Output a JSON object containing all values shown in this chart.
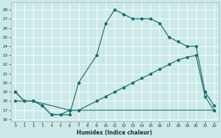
{
  "xlabel": "Humidex (Indice chaleur)",
  "bg_color": "#cce9e9",
  "grid_color": "#ffffff",
  "line_color": "#1a7070",
  "xlim": [
    -0.5,
    22.5
  ],
  "ylim": [
    15.8,
    28.8
  ],
  "xticks": [
    0,
    1,
    2,
    3,
    4,
    5,
    6,
    7,
    8,
    9,
    10,
    11,
    12,
    13,
    14,
    15,
    16,
    17,
    18,
    19,
    20,
    21,
    22
  ],
  "yticks": [
    16,
    17,
    18,
    19,
    20,
    21,
    22,
    23,
    24,
    25,
    26,
    27,
    28
  ],
  "line1_x": [
    0,
    1,
    2,
    3,
    4,
    5,
    6,
    7,
    9,
    10,
    11,
    12,
    13,
    14,
    15,
    16,
    17,
    18,
    19,
    20,
    21,
    22
  ],
  "line1_y": [
    19,
    18,
    18,
    17.5,
    16.5,
    16.5,
    16.5,
    20,
    23,
    26.5,
    28,
    27.5,
    27,
    27,
    27,
    26.5,
    25,
    24.5,
    24,
    24,
    19,
    17.5
  ],
  "line2_x": [
    0,
    2,
    6,
    7,
    9,
    10,
    11,
    12,
    13,
    14,
    15,
    16,
    17,
    18,
    19,
    20,
    21,
    22
  ],
  "line2_y": [
    18,
    18,
    17,
    17,
    18,
    18.5,
    19,
    19.5,
    20,
    20.5,
    21,
    21.5,
    22,
    22.5,
    22.8,
    23,
    18.5,
    17
  ],
  "line3_x": [
    0,
    1,
    2,
    3,
    4,
    5,
    6,
    22
  ],
  "line3_y": [
    19,
    18,
    18,
    17.5,
    16.5,
    16.5,
    17,
    17
  ]
}
